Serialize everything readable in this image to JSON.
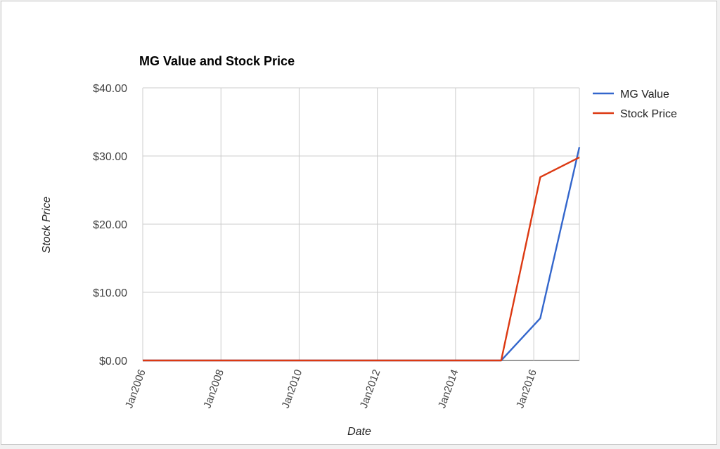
{
  "chart_data": {
    "type": "line",
    "title": "MG Value and Stock Price",
    "xlabel": "Date",
    "ylabel": "Stock Price",
    "x_ticks": [
      "Jan2006",
      "Jan2008",
      "Jan2010",
      "Jan2012",
      "Jan2014",
      "Jan2016"
    ],
    "y_ticks": [
      "$0.00",
      "$10.00",
      "$20.00",
      "$30.00",
      "$40.00"
    ],
    "ylim": [
      0,
      40
    ],
    "xlim": [
      "2006-01",
      "2017-03"
    ],
    "grid": true,
    "legend": "right",
    "series": [
      {
        "name": "MG Value",
        "color": "#3366cc",
        "points": [
          {
            "x": "2006-01",
            "y": 0
          },
          {
            "x": "2015-03",
            "y": 0
          },
          {
            "x": "2016-03",
            "y": 6.2
          },
          {
            "x": "2017-03",
            "y": 31.3
          }
        ]
      },
      {
        "name": "Stock Price",
        "color": "#dc3912",
        "points": [
          {
            "x": "2006-01",
            "y": 0
          },
          {
            "x": "2015-03",
            "y": 0
          },
          {
            "x": "2016-03",
            "y": 26.9
          },
          {
            "x": "2017-03",
            "y": 29.8
          }
        ]
      }
    ]
  }
}
